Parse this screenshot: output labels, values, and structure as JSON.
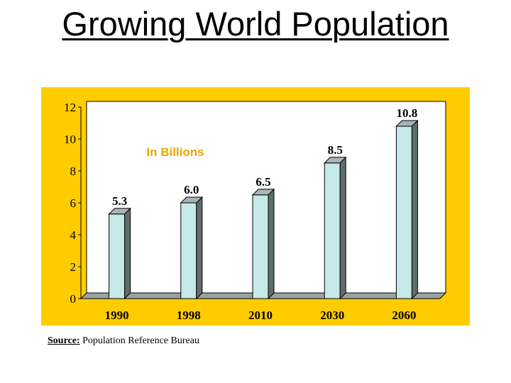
{
  "slide": {
    "title": "Growing World Population"
  },
  "source": {
    "label": "Source:",
    "text": " Population Reference Bureau"
  },
  "colors": {
    "panel_background": "#ffcc00",
    "plot_background": "#ffffff",
    "bar_front": "#c5e9e8",
    "bar_side": "#5f6d6d",
    "bar_top": "#a9b4b4",
    "annotation": "#e9a800"
  },
  "chart_data": {
    "type": "bar",
    "style": "3d-column",
    "categories": [
      "1990",
      "1998",
      "2010",
      "2030",
      "2060"
    ],
    "values": [
      5.3,
      6.0,
      6.5,
      8.5,
      10.8
    ],
    "data_labels": [
      "5.3",
      "6.0",
      "6.5",
      "8.5",
      "10.8"
    ],
    "yticks": [
      "0",
      "2",
      "4",
      "6",
      "8",
      "10",
      "12"
    ],
    "ylim": [
      0,
      12
    ],
    "annotation": "In Billions",
    "grid": false,
    "legend": "none"
  }
}
